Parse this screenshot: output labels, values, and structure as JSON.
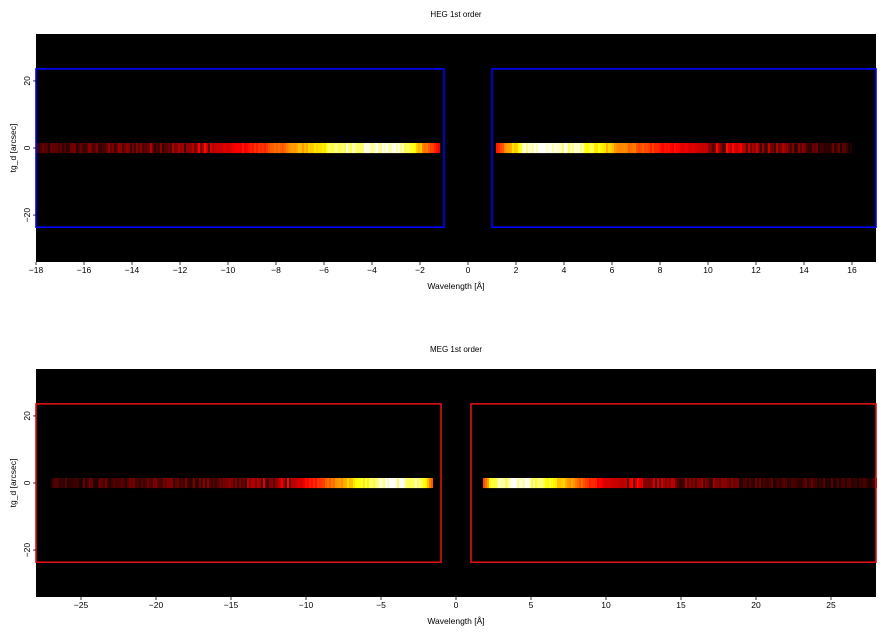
{
  "chart_data": [
    {
      "type": "heatmap",
      "title": "HEG 1st order",
      "xlabel": "Wavelength [Å]",
      "ylabel": "tg_d [arcsec]",
      "xlim": [
        -18,
        17
      ],
      "ylim": [
        -34,
        34
      ],
      "xticks": [
        -18,
        -16,
        -14,
        -12,
        -10,
        -8,
        -6,
        -4,
        -2,
        0,
        2,
        4,
        6,
        8,
        10,
        12,
        14,
        16
      ],
      "xtick_labels": [
        "−18",
        "−16",
        "−14",
        "−12",
        "−10",
        "−8",
        "−6",
        "−4",
        "−2",
        "0",
        "2",
        "4",
        "6",
        "8",
        "10",
        "12",
        "14",
        "16"
      ],
      "yticks": [
        -20,
        0,
        20
      ],
      "ytick_labels": [
        "−20",
        "0",
        "20"
      ],
      "background": "#000000",
      "colormap": "hot",
      "region_color": "#0000ff",
      "regions": [
        {
          "x": [
            -18,
            -1.0
          ],
          "y": [
            -23.6,
            23.6
          ]
        },
        {
          "x": [
            1.0,
            17
          ],
          "y": [
            -23.6,
            23.6
          ]
        }
      ],
      "spectrum": {
        "y_center": 0,
        "half_width": 1.5,
        "x_range": [
          -18,
          16
        ],
        "gap": [
          -1.2,
          1.2
        ],
        "intensity_profile": [
          {
            "x": -18,
            "v": 0.1
          },
          {
            "x": -12,
            "v": 0.2
          },
          {
            "x": -10,
            "v": 0.35
          },
          {
            "x": -8,
            "v": 0.55
          },
          {
            "x": -6.5,
            "v": 0.75
          },
          {
            "x": -5,
            "v": 0.95
          },
          {
            "x": -3,
            "v": 1.0
          },
          {
            "x": -2.2,
            "v": 0.8
          },
          {
            "x": -1.6,
            "v": 0.55
          },
          {
            "x": -1.2,
            "v": 0.4
          },
          {
            "x": 1.2,
            "v": 0.45
          },
          {
            "x": 1.8,
            "v": 0.7
          },
          {
            "x": 2.5,
            "v": 1.0
          },
          {
            "x": 4.5,
            "v": 0.95
          },
          {
            "x": 6,
            "v": 0.7
          },
          {
            "x": 8,
            "v": 0.45
          },
          {
            "x": 10,
            "v": 0.3
          },
          {
            "x": 13,
            "v": 0.18
          },
          {
            "x": 16,
            "v": 0.1
          }
        ]
      }
    },
    {
      "type": "heatmap",
      "title": "MEG 1st order",
      "xlabel": "Wavelength [Å]",
      "ylabel": "tg_d [arcsec]",
      "xlim": [
        -28,
        28
      ],
      "ylim": [
        -34,
        34
      ],
      "xticks": [
        -25,
        -20,
        -15,
        -10,
        -5,
        0,
        5,
        10,
        15,
        20,
        25
      ],
      "xtick_labels": [
        "−25",
        "−20",
        "−15",
        "−10",
        "−5",
        "0",
        "5",
        "10",
        "15",
        "20",
        "25"
      ],
      "yticks": [
        -20,
        0,
        20
      ],
      "ytick_labels": [
        "−20",
        "0",
        "20"
      ],
      "background": "#000000",
      "colormap": "hot",
      "region_color": "#dd1111",
      "regions": [
        {
          "x": [
            -28,
            -1.0
          ],
          "y": [
            -23.6,
            23.6
          ]
        },
        {
          "x": [
            1.0,
            28
          ],
          "y": [
            -23.6,
            23.6
          ]
        }
      ],
      "spectrum": {
        "y_center": 0,
        "half_width": 1.5,
        "x_range": [
          -27,
          28
        ],
        "gap": [
          -1.6,
          1.8
        ],
        "intensity_profile": [
          {
            "x": -27,
            "v": 0.1
          },
          {
            "x": -15,
            "v": 0.15
          },
          {
            "x": -11,
            "v": 0.3
          },
          {
            "x": -9,
            "v": 0.5
          },
          {
            "x": -7.5,
            "v": 0.7
          },
          {
            "x": -6,
            "v": 0.85
          },
          {
            "x": -4.5,
            "v": 1.0
          },
          {
            "x": -2.2,
            "v": 0.9
          },
          {
            "x": -1.6,
            "v": 0.55
          },
          {
            "x": 1.8,
            "v": 0.5
          },
          {
            "x": 2.5,
            "v": 0.9
          },
          {
            "x": 4,
            "v": 1.0
          },
          {
            "x": 6,
            "v": 0.85
          },
          {
            "x": 8,
            "v": 0.6
          },
          {
            "x": 10,
            "v": 0.35
          },
          {
            "x": 14,
            "v": 0.2
          },
          {
            "x": 20,
            "v": 0.12
          },
          {
            "x": 28,
            "v": 0.08
          }
        ]
      }
    }
  ]
}
